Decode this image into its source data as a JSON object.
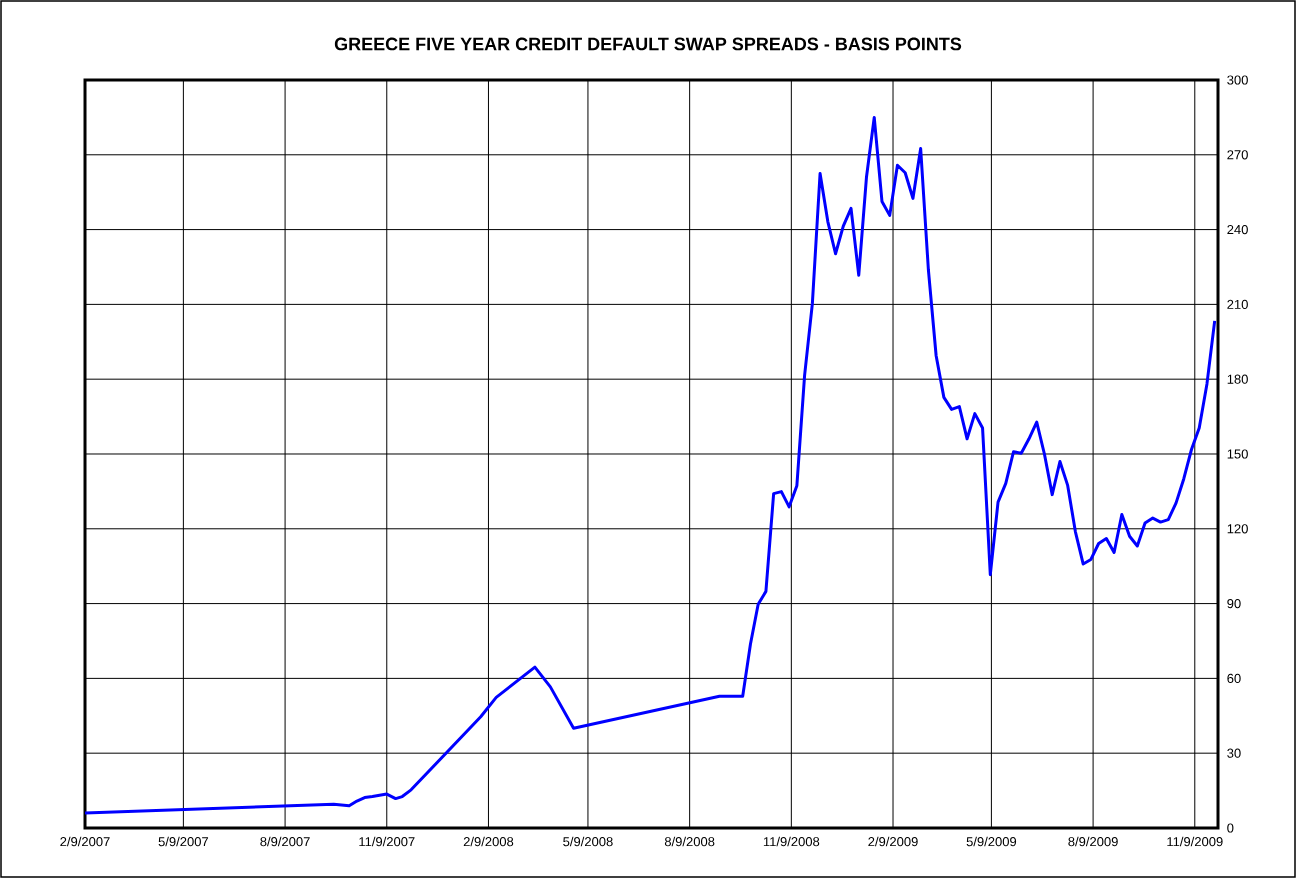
{
  "chart_data": {
    "type": "line",
    "title": "GREECE FIVE YEAR CREDIT DEFAULT SWAP SPREADS - BASIS POINTS",
    "x": [
      "2007-02-09",
      "2007-09-22",
      "2007-10-06",
      "2007-10-13",
      "2007-10-20",
      "2007-10-27",
      "2007-11-09",
      "2007-11-17",
      "2007-11-23",
      "2007-12-01",
      "2008-02-02",
      "2008-02-16",
      "2008-03-22",
      "2008-04-05",
      "2008-04-26",
      "2008-09-05",
      "2008-09-26",
      "2008-10-03",
      "2008-10-10",
      "2008-10-17",
      "2008-10-24",
      "2008-10-31",
      "2008-11-07",
      "2008-11-14",
      "2008-11-21",
      "2008-11-28",
      "2008-12-05",
      "2008-12-12",
      "2008-12-19",
      "2008-12-26",
      "2009-01-02",
      "2009-01-09",
      "2009-01-16",
      "2009-01-23",
      "2009-01-30",
      "2009-02-06",
      "2009-02-13",
      "2009-02-20",
      "2009-02-27",
      "2009-03-06",
      "2009-03-13",
      "2009-03-20",
      "2009-03-27",
      "2009-04-03",
      "2009-04-10",
      "2009-04-17",
      "2009-04-24",
      "2009-05-01",
      "2009-05-08",
      "2009-05-15",
      "2009-05-22",
      "2009-05-29",
      "2009-06-05",
      "2009-06-12",
      "2009-06-19",
      "2009-06-26",
      "2009-07-03",
      "2009-07-10",
      "2009-07-17",
      "2009-07-24",
      "2009-07-31",
      "2009-08-07",
      "2009-08-14",
      "2009-08-21",
      "2009-08-28",
      "2009-09-04",
      "2009-09-11",
      "2009-09-18",
      "2009-09-25",
      "2009-10-02",
      "2009-10-09",
      "2009-10-16",
      "2009-10-23",
      "2009-10-30",
      "2009-11-06",
      "2009-11-13",
      "2009-11-20",
      "2009-11-27"
    ],
    "values": [
      6,
      9.5,
      8.9,
      10.8,
      12.2,
      12.6,
      13.6,
      11.8,
      12.6,
      15.3,
      44.6,
      52.4,
      64.5,
      56.6,
      40,
      52.8,
      52.8,
      73.7,
      89.7,
      94.9,
      134.1,
      134.9,
      128.8,
      137.3,
      181.5,
      210.2,
      262.5,
      243.2,
      230.3,
      241.4,
      248.5,
      221.7,
      261.1,
      285,
      251.3,
      245.7,
      265.8,
      262.8,
      252.5,
      272.5,
      223.8,
      189.4,
      172.7,
      167.9,
      169,
      156.1,
      166.2,
      160.4,
      101.6,
      130.7,
      138.2,
      150.9,
      150.3,
      156.1,
      162.8,
      149.9,
      133.7,
      147,
      137.4,
      118.8,
      105.9,
      107.7,
      114.1,
      116.1,
      110.5,
      125.7,
      117,
      113.1,
      122.3,
      124.3,
      122.7,
      123.7,
      130.3,
      140,
      151.8,
      160.4,
      178.1,
      203.4
    ],
    "color": "#0000ff",
    "xlim": [
      "2007-02-09",
      "2009-11-30"
    ],
    "xticks": [
      {
        "value": "2007-02-09",
        "label": "2/9/2007"
      },
      {
        "value": "2007-05-09",
        "label": "5/9/2007"
      },
      {
        "value": "2007-08-09",
        "label": "8/9/2007"
      },
      {
        "value": "2007-11-09",
        "label": "11/9/2007"
      },
      {
        "value": "2008-02-09",
        "label": "2/9/2008"
      },
      {
        "value": "2008-05-09",
        "label": "5/9/2008"
      },
      {
        "value": "2008-08-09",
        "label": "8/9/2008"
      },
      {
        "value": "2008-11-09",
        "label": "11/9/2008"
      },
      {
        "value": "2009-02-09",
        "label": "2/9/2009"
      },
      {
        "value": "2009-05-09",
        "label": "5/9/2009"
      },
      {
        "value": "2009-08-09",
        "label": "8/9/2009"
      },
      {
        "value": "2009-11-09",
        "label": "11/9/2009"
      }
    ],
    "ylim": [
      0,
      300
    ],
    "yticks": [
      0,
      30,
      60,
      90,
      120,
      150,
      180,
      210,
      240,
      270,
      300
    ],
    "grid": true
  }
}
